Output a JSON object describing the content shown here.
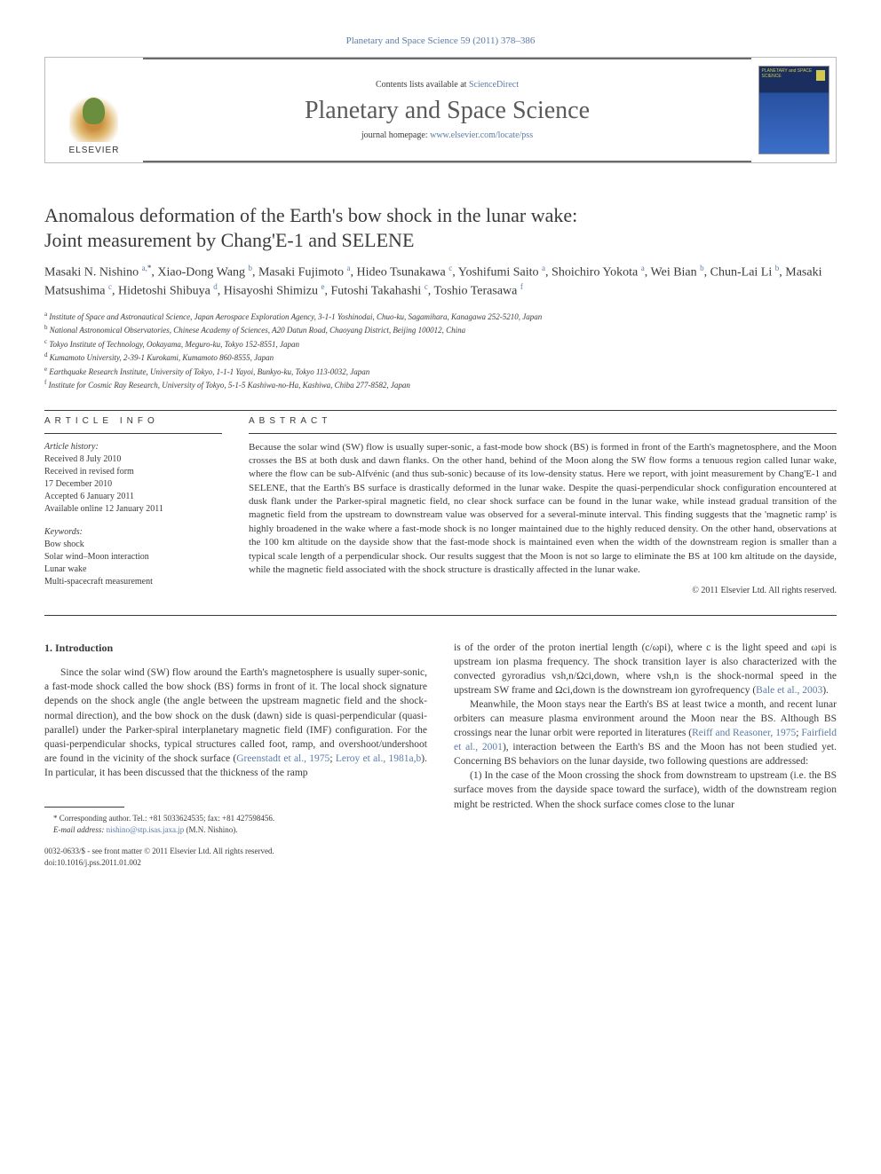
{
  "header_citation": "Planetary and Space Science 59 (2011) 378–386",
  "banner": {
    "contents_prefix": "Contents lists available at ",
    "contents_link": "ScienceDirect",
    "journal": "Planetary and Space Science",
    "homepage_prefix": "journal homepage: ",
    "homepage_url": "www.elsevier.com/locate/pss",
    "publisher": "ELSEVIER",
    "cover_text": "PLANETARY and SPACE SCIENCE"
  },
  "title_line1": "Anomalous deformation of the Earth's bow shock in the lunar wake:",
  "title_line2": "Joint measurement by Chang'E-1 and SELENE",
  "authors_html": "Masaki N. Nishino <sup>a,*</sup>, Xiao-Dong Wang <sup>b</sup>, Masaki Fujimoto <sup>a</sup>, Hideo Tsunakawa <sup>c</sup>, Yoshifumi Saito <sup>a</sup>, Shoichiro Yokota <sup>a</sup>, Wei Bian <sup>b</sup>, Chun-Lai Li <sup>b</sup>, Masaki Matsushima <sup>c</sup>, Hidetoshi Shibuya <sup>d</sup>, Hisayoshi Shimizu <sup>e</sup>, Futoshi Takahashi <sup>c</sup>, Toshio Terasawa <sup>f</sup>",
  "affiliations": [
    "a|Institute of Space and Astronautical Science, Japan Aerospace Exploration Agency, 3-1-1 Yoshinodai, Chuo-ku, Sagamihara, Kanagawa 252-5210, Japan",
    "b|National Astronomical Observatories, Chinese Academy of Sciences, A20 Datun Road, Chaoyang District, Beijing 100012, China",
    "c|Tokyo Institute of Technology, Ookayama, Meguro-ku, Tokyo 152-8551, Japan",
    "d|Kumamoto University, 2-39-1 Kurokami, Kumamoto 860-8555, Japan",
    "e|Earthquake Research Institute, University of Tokyo, 1-1-1 Yayoi, Bunkyo-ku, Tokyo 113-0032, Japan",
    "f|Institute for Cosmic Ray Research, University of Tokyo, 5-1-5 Kashiwa-no-Ha, Kashiwa, Chiba 277-8582, Japan"
  ],
  "article_info": {
    "heading": "article info",
    "history_label": "Article history:",
    "history": [
      "Received 8 July 2010",
      "Received in revised form",
      "17 December 2010",
      "Accepted 6 January 2011",
      "Available online 12 January 2011"
    ],
    "keywords_label": "Keywords:",
    "keywords": [
      "Bow shock",
      "Solar wind–Moon interaction",
      "Lunar wake",
      "Multi-spacecraft measurement"
    ]
  },
  "abstract": {
    "heading": "abstract",
    "text": "Because the solar wind (SW) flow is usually super-sonic, a fast-mode bow shock (BS) is formed in front of the Earth's magnetosphere, and the Moon crosses the BS at both dusk and dawn flanks. On the other hand, behind of the Moon along the SW flow forms a tenuous region called lunar wake, where the flow can be sub-Alfvénic (and thus sub-sonic) because of its low-density status. Here we report, with joint measurement by Chang'E-1 and SELENE, that the Earth's BS surface is drastically deformed in the lunar wake. Despite the quasi-perpendicular shock configuration encountered at dusk flank under the Parker-spiral magnetic field, no clear shock surface can be found in the lunar wake, while instead gradual transition of the magnetic field from the upstream to downstream value was observed for a several-minute interval. This finding suggests that the 'magnetic ramp' is highly broadened in the wake where a fast-mode shock is no longer maintained due to the highly reduced density. On the other hand, observations at the 100 km altitude on the dayside show that the fast-mode shock is maintained even when the width of the downstream region is smaller than a typical scale length of a perpendicular shock. Our results suggest that the Moon is not so large to eliminate the BS at 100 km altitude on the dayside, while the magnetic field associated with the shock structure is drastically affected in the lunar wake.",
    "copyright": "© 2011 Elsevier Ltd. All rights reserved."
  },
  "body": {
    "section_number": "1.",
    "section_title": "Introduction",
    "col1_p1_pre": "Since the solar wind (SW) flow around the Earth's magnetosphere is usually super-sonic, a fast-mode shock called the bow shock (BS) forms in front of it. The local shock signature depends on the shock angle (the angle between the upstream magnetic field and the shock-normal direction), and the bow shock on the dusk (dawn) side is quasi-perpendicular (quasi-parallel) under the Parker-spiral interplanetary magnetic field (IMF) configuration. For the quasi-perpendicular shocks, typical structures called foot, ramp, and overshoot/undershoot are found in the vicinity of the shock surface (",
    "col1_link1": "Greenstadt et al., 1975",
    "col1_link2": "Leroy et al., 1981a,b",
    "col1_p1_post": "). In particular, it has been discussed that the thickness of the ramp",
    "col2_p1_pre": "is of the order of the proton inertial length (c/ωpi), where c is the light speed and ωpi is upstream ion plasma frequency. The shock transition layer is also characterized with the convected gyroradius vsh,n/Ωci,down, where vsh,n is the shock-normal speed in the upstream SW frame and Ωci,down is the downstream ion gyrofrequency (",
    "col2_link1": "Bale et al., 2003",
    "col2_p1_post": ").",
    "col2_p2_pre": "Meanwhile, the Moon stays near the Earth's BS at least twice a month, and recent lunar orbiters can measure plasma environment around the Moon near the BS. Although BS crossings near the lunar orbit were reported in literatures (",
    "col2_link2": "Reiff and Reasoner, 1975",
    "col2_link3": "Fairfield et al., 2001",
    "col2_p2_post": "), interaction between the Earth's BS and the Moon has not been studied yet. Concerning BS behaviors on the lunar dayside, two following questions are addressed:",
    "col2_p3": "(1) In the case of the Moon crossing the shock from downstream to upstream (i.e. the BS surface moves from the dayside space toward the surface), width of the downstream region might be restricted. When the shock surface comes close to the lunar"
  },
  "footnote": {
    "corr": "* Corresponding author. Tel.: +81 5033624535; fax: +81 427598456.",
    "email_label": "E-mail address:",
    "email": "nishino@stp.isas.jaxa.jp",
    "email_who": "(M.N. Nishino)."
  },
  "footer": {
    "line1": "0032-0633/$ - see front matter © 2011 Elsevier Ltd. All rights reserved.",
    "line2": "doi:10.1016/j.pss.2011.01.002"
  },
  "colors": {
    "link": "#5b7ca8",
    "text": "#3a3a3a",
    "rule": "#3a3a3a"
  }
}
